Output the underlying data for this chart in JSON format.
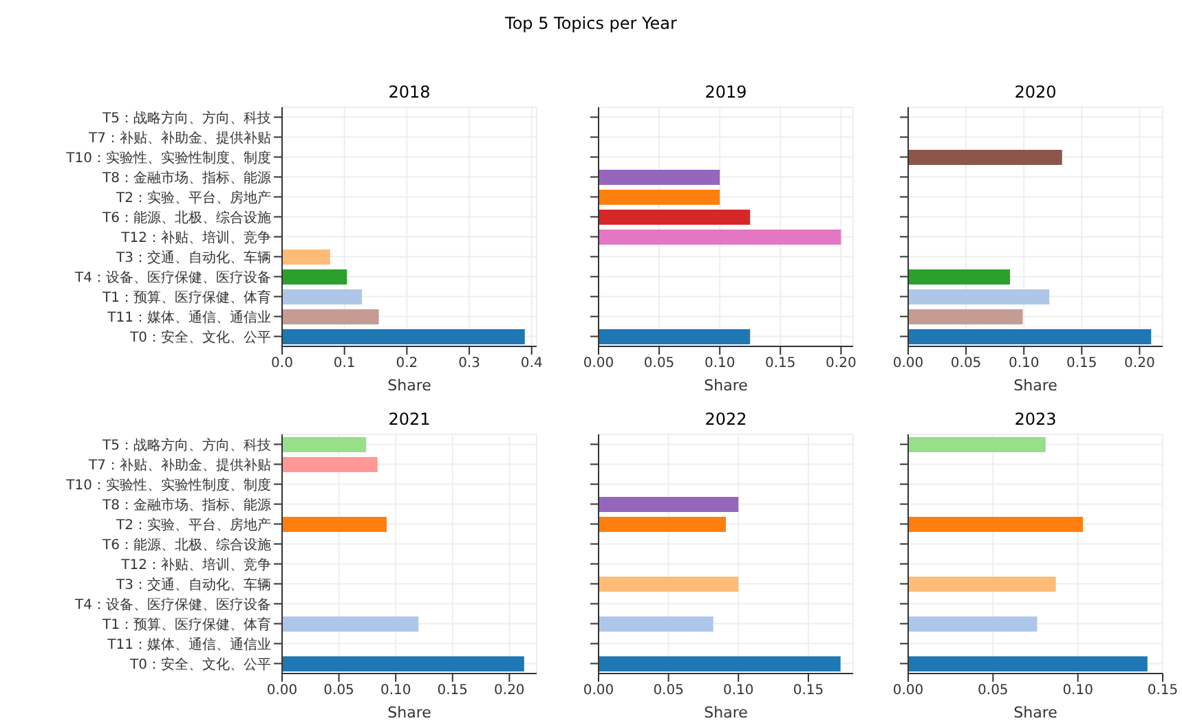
{
  "chart_data": [
    {
      "type": "bar",
      "orientation": "horizontal",
      "title": "2018",
      "xlabel": "Share",
      "annotations": [
        "Top 5 Topics per Year"
      ],
      "grid": true,
      "categories": [
        "T5：战略方向、方向、科技",
        "T7：补贴、补助金、提供补贴",
        "T10：实验性、实验性制度、制度",
        "T8：金融市场、指标、能源",
        "T2：实验、平台、房地产",
        "T6：能源、北极、综合设施",
        "T12：补贴、培训、竞争",
        "T3：交通、自动化、车辆",
        "T4：设备、医疗保健、医疗设备",
        "T1：预算、医疗保健、体育",
        "T11：媒体、通信、通信业",
        "T0：安全、文化、公平"
      ],
      "values": [
        null,
        null,
        null,
        null,
        null,
        null,
        null,
        0.077,
        0.104,
        0.128,
        0.155,
        0.389
      ],
      "colors": [
        null,
        null,
        null,
        null,
        null,
        null,
        null,
        "#ffbb78",
        "#2ca02c",
        "#aec7e8",
        "#c49c94",
        "#1f77b4"
      ],
      "xlim": [
        0,
        0.408
      ],
      "xticks": [
        {
          "value": 0,
          "label": "0.0"
        },
        {
          "value": 0.1,
          "label": "0.1"
        },
        {
          "value": 0.2,
          "label": "0.2"
        },
        {
          "value": 0.3,
          "label": "0.3"
        },
        {
          "value": 0.4,
          "label": "0.4"
        }
      ]
    },
    {
      "type": "bar",
      "orientation": "horizontal",
      "title": "2019",
      "xlabel": "Share",
      "grid": true,
      "tick_labels": "x",
      "categories": [
        null,
        null,
        null,
        null,
        null,
        null,
        null,
        null,
        null,
        null,
        null,
        null
      ],
      "values": [
        null,
        null,
        null,
        0.1,
        0.1,
        0.125,
        0.2,
        null,
        null,
        null,
        null,
        0.125
      ],
      "colors": [
        null,
        null,
        null,
        "#9467bd",
        "#ff7f0e",
        "#d62728",
        "#e377c2",
        null,
        null,
        null,
        null,
        "#1f77b4"
      ],
      "xlim": [
        0,
        0.21
      ],
      "xticks": [
        {
          "value": 0,
          "label": "0.00"
        },
        {
          "value": 0.05,
          "label": "0.05"
        },
        {
          "value": 0.1,
          "label": "0.10"
        },
        {
          "value": 0.15,
          "label": "0.15"
        },
        {
          "value": 0.2,
          "label": "0.20"
        }
      ]
    },
    {
      "type": "bar",
      "orientation": "horizontal",
      "title": "2020",
      "xlabel": "Share",
      "grid": true,
      "tick_labels": "x",
      "categories": [
        null,
        null,
        null,
        null,
        null,
        null,
        null,
        null,
        null,
        null,
        null,
        null
      ],
      "values": [
        null,
        null,
        0.133,
        null,
        null,
        null,
        null,
        null,
        0.088,
        0.122,
        0.099,
        0.21
      ],
      "colors": [
        null,
        null,
        "#8c564b",
        null,
        null,
        null,
        null,
        null,
        "#2ca02c",
        "#aec7e8",
        "#c49c94",
        "#1f77b4"
      ],
      "xlim": [
        0,
        0.22
      ],
      "xticks": [
        {
          "value": 0,
          "label": "0.00"
        },
        {
          "value": 0.05,
          "label": "0.05"
        },
        {
          "value": 0.1,
          "label": "0.10"
        },
        {
          "value": 0.15,
          "label": "0.15"
        },
        {
          "value": 0.2,
          "label": "0.20"
        }
      ]
    },
    {
      "type": "bar",
      "orientation": "horizontal",
      "title": "2021",
      "xlabel": "Share",
      "grid": true,
      "categories": [
        "T5：战略方向、方向、科技",
        "T7：补贴、补助金、提供补贴",
        "T10：实验性、实验性制度、制度",
        "T8：金融市场、指标、能源",
        "T2：实验、平台、房地产",
        "T6：能源、北极、综合设施",
        "T12：补贴、培训、竞争",
        "T3：交通、自动化、车辆",
        "T4：设备、医疗保健、医疗设备",
        "T1：预算、医疗保健、体育",
        "T11：媒体、通信、通信业",
        "T0：安全、文化、公平"
      ],
      "values": [
        0.074,
        0.084,
        null,
        null,
        0.092,
        null,
        null,
        null,
        null,
        0.12,
        null,
        0.213
      ],
      "colors": [
        "#98df8a",
        "#ff9896",
        null,
        null,
        "#ff7f0e",
        null,
        null,
        null,
        null,
        "#aec7e8",
        null,
        "#1f77b4"
      ],
      "xlim": [
        0,
        0.224
      ],
      "xticks": [
        {
          "value": 0,
          "label": "0.00"
        },
        {
          "value": 0.05,
          "label": "0.05"
        },
        {
          "value": 0.1,
          "label": "0.10"
        },
        {
          "value": 0.15,
          "label": "0.15"
        },
        {
          "value": 0.2,
          "label": "0.20"
        }
      ]
    },
    {
      "type": "bar",
      "orientation": "horizontal",
      "title": "2022",
      "xlabel": "Share",
      "grid": true,
      "tick_labels": "x",
      "categories": [
        null,
        null,
        null,
        null,
        null,
        null,
        null,
        null,
        null,
        null,
        null,
        null
      ],
      "values": [
        null,
        null,
        null,
        0.1,
        0.091,
        null,
        null,
        0.1,
        null,
        0.082,
        null,
        0.173
      ],
      "colors": [
        null,
        null,
        null,
        "#9467bd",
        "#ff7f0e",
        null,
        null,
        "#ffbb78",
        null,
        "#aec7e8",
        null,
        "#1f77b4"
      ],
      "xlim": [
        0,
        0.182
      ],
      "xticks": [
        {
          "value": 0,
          "label": "0.00"
        },
        {
          "value": 0.05,
          "label": "0.05"
        },
        {
          "value": 0.1,
          "label": "0.10"
        },
        {
          "value": 0.15,
          "label": "0.15"
        }
      ]
    },
    {
      "type": "bar",
      "orientation": "horizontal",
      "title": "2023",
      "xlabel": "Share",
      "grid": true,
      "tick_labels": "x",
      "categories": [
        null,
        null,
        null,
        null,
        null,
        null,
        null,
        null,
        null,
        null,
        null,
        null
      ],
      "values": [
        0.081,
        null,
        null,
        null,
        0.103,
        null,
        null,
        0.087,
        null,
        0.076,
        null,
        0.141
      ],
      "colors": [
        "#98df8a",
        null,
        null,
        null,
        "#ff7f0e",
        null,
        null,
        "#ffbb78",
        null,
        "#aec7e8",
        null,
        "#1f77b4"
      ],
      "xlim": [
        0,
        0.15
      ],
      "xticks": [
        {
          "value": 0,
          "label": "0.00"
        },
        {
          "value": 0.05,
          "label": "0.05"
        },
        {
          "value": 0.1,
          "label": "0.10"
        },
        {
          "value": 0.15,
          "label": "0.15"
        }
      ]
    }
  ]
}
